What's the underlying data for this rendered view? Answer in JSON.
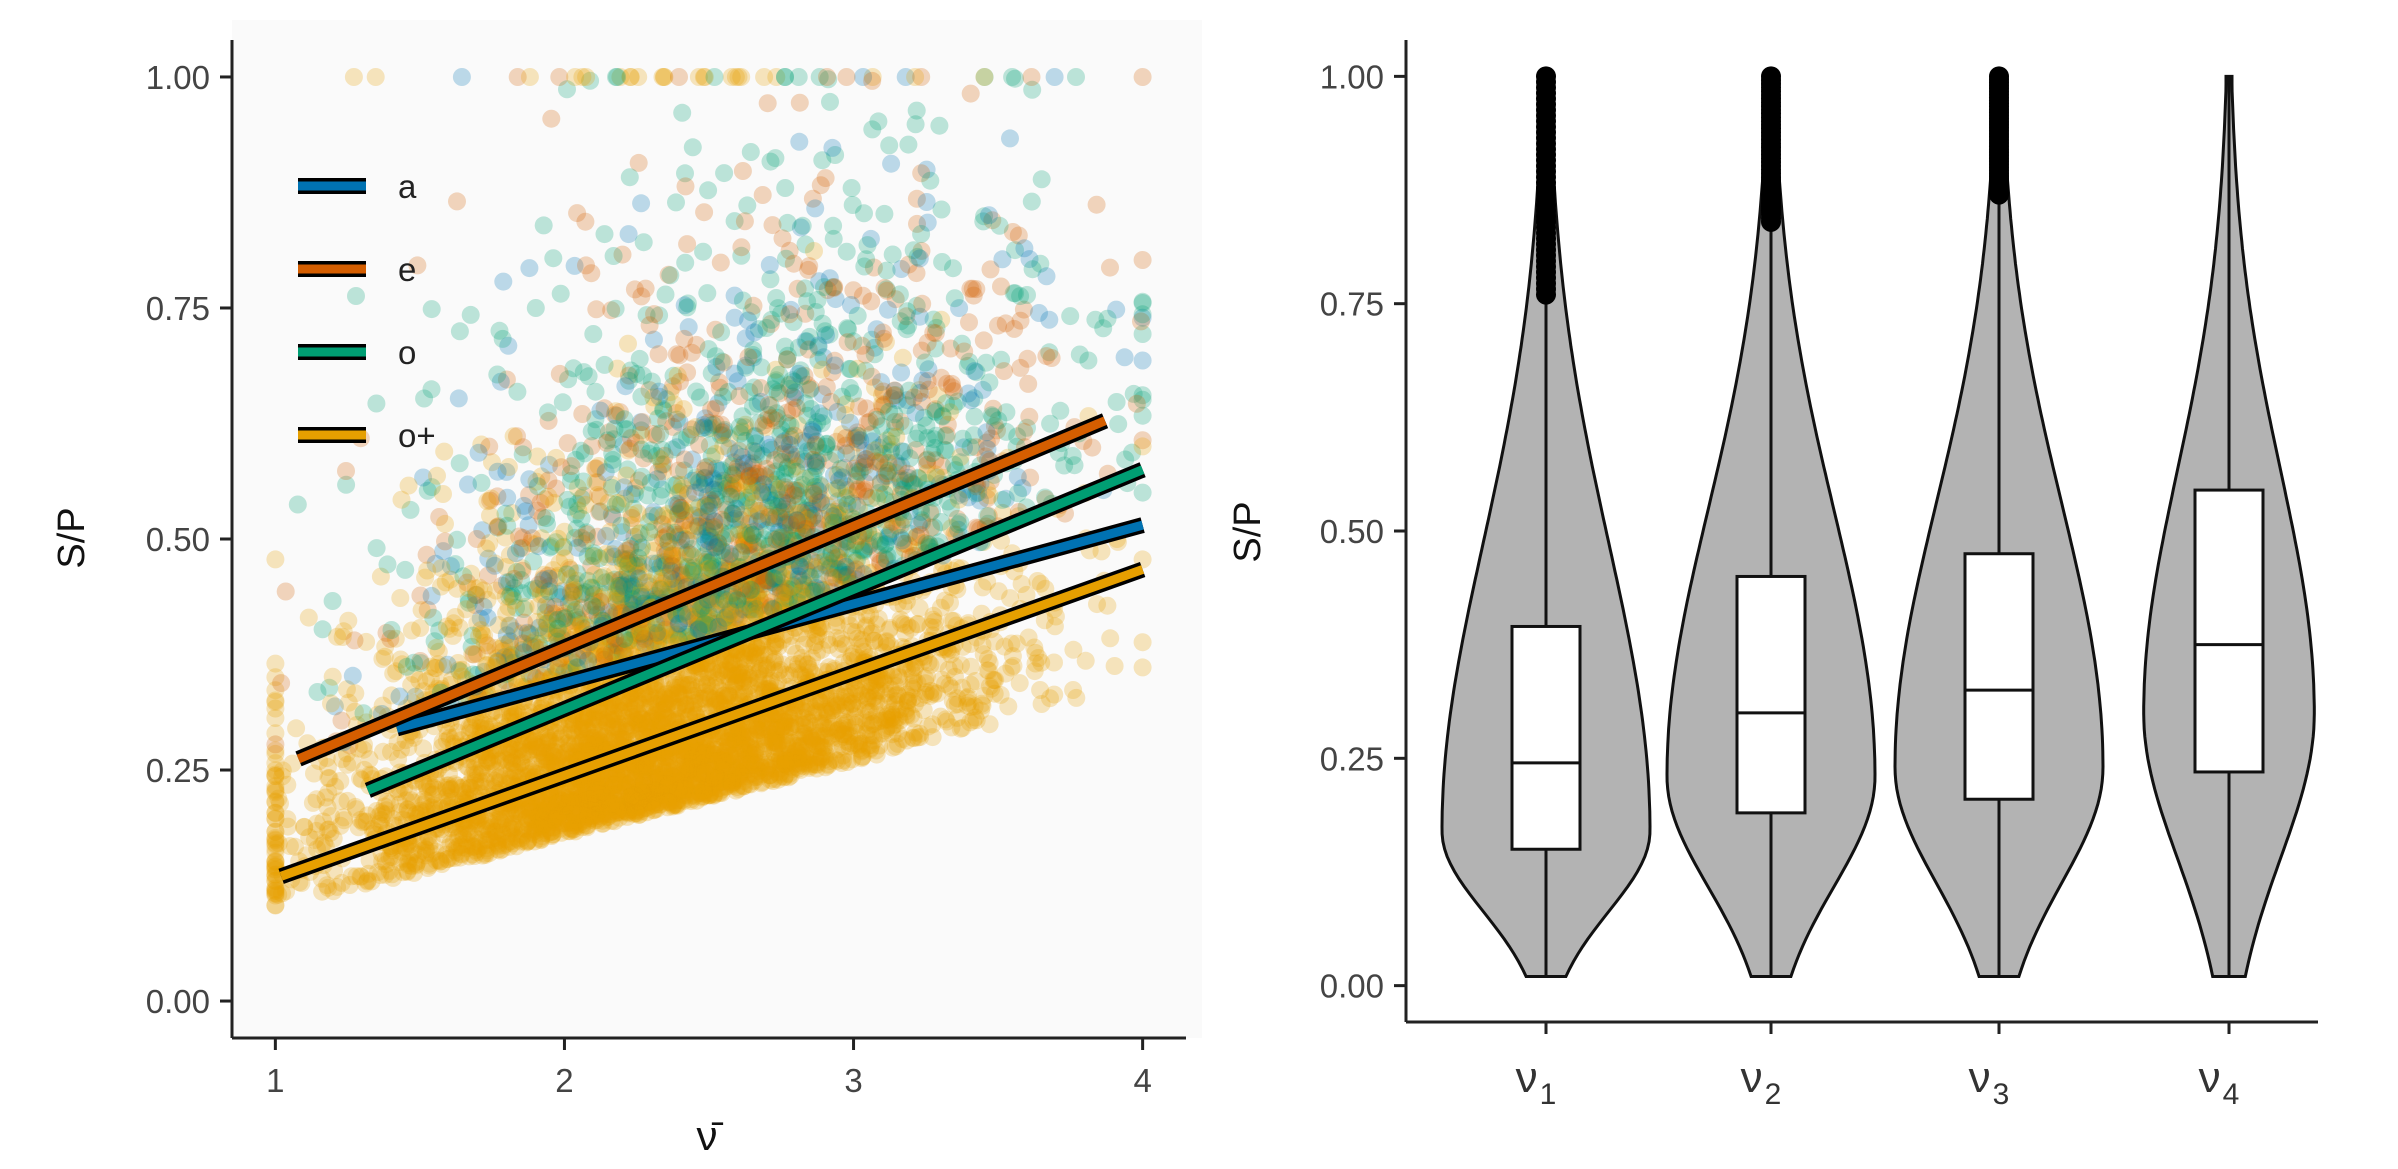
{
  "chart_data": [
    {
      "type": "scatter",
      "xlabel": "ν̄",
      "ylabel": "S/P",
      "xlim": [
        0.85,
        4.15
      ],
      "ylim": [
        -0.04,
        1.04
      ],
      "xticks": [
        "1",
        "2",
        "3",
        "4"
      ],
      "xtick_values": [
        1,
        2,
        3,
        4
      ],
      "yticks": [
        "0.00",
        "0.25",
        "0.50",
        "0.75",
        "1.00"
      ],
      "ytick_values": [
        0,
        0.25,
        0.5,
        0.75,
        1.0
      ],
      "grid": false,
      "legend_placement": "top-left",
      "point_alpha": 0.25,
      "series": [
        {
          "name": "a",
          "color": "#0072B2",
          "regression": {
            "x": [
              1.42,
              4.0
            ],
            "y": [
              0.295,
              0.515
            ]
          }
        },
        {
          "name": "e",
          "color": "#D55E00",
          "regression": {
            "x": [
              1.08,
              3.87
            ],
            "y": [
              0.262,
              0.628
            ]
          }
        },
        {
          "name": "o",
          "color": "#009E73",
          "regression": {
            "x": [
              1.32,
              4.0
            ],
            "y": [
              0.228,
              0.575
            ]
          }
        },
        {
          "name": "o+",
          "color": "#E69F00",
          "regression": {
            "x": [
              1.02,
              4.0
            ],
            "y": [
              0.135,
              0.467
            ]
          }
        }
      ],
      "point_cloud": {
        "center_x": 2.3,
        "center_y": 0.2,
        "x_range": [
          1.0,
          4.0
        ],
        "y_range": [
          0.0,
          1.0
        ],
        "dominant_series": "o+",
        "approx_points_shown": 6500
      }
    },
    {
      "type": "violin",
      "ylabel": "S/P",
      "ylim": [
        -0.04,
        1.04
      ],
      "yticks": [
        "0.00",
        "0.25",
        "0.50",
        "0.75",
        "1.00"
      ],
      "ytick_values": [
        0,
        0.25,
        0.5,
        0.75,
        1.0
      ],
      "grid": false,
      "fill_color": "#b3b3b3",
      "categories": [
        {
          "symbol": "ν",
          "sub": "1",
          "min": 0.01,
          "max": 1.0,
          "q1": 0.15,
          "median": 0.245,
          "q3": 0.395,
          "whisker_high": 0.76,
          "outliers_from": 0.76,
          "mode": 0.17
        },
        {
          "symbol": "ν",
          "sub": "2",
          "min": 0.01,
          "max": 1.0,
          "q1": 0.19,
          "median": 0.3,
          "q3": 0.45,
          "whisker_high": 0.84,
          "outliers_from": 0.84,
          "mode": 0.23
        },
        {
          "symbol": "ν",
          "sub": "3",
          "min": 0.01,
          "max": 1.0,
          "q1": 0.205,
          "median": 0.325,
          "q3": 0.475,
          "whisker_high": 0.87,
          "outliers_from": 0.87,
          "mode": 0.24
        },
        {
          "symbol": "ν",
          "sub": "4",
          "min": 0.01,
          "max": 1.0,
          "q1": 0.235,
          "median": 0.375,
          "q3": 0.545,
          "whisker_high": 1.0,
          "outliers_from": null,
          "mode": 0.3
        }
      ]
    }
  ]
}
